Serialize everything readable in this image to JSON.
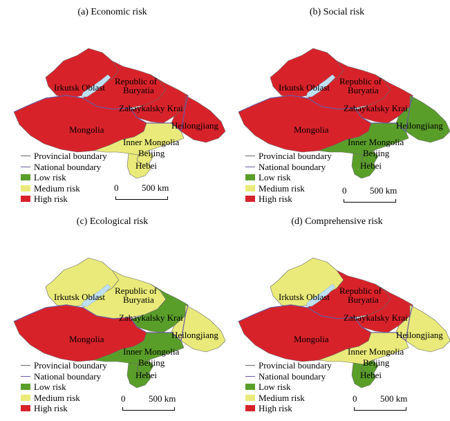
{
  "colors": {
    "low": "#5a9e2a",
    "medium": "#eaea7a",
    "high": "#d8222a",
    "lake": "#bfe0f2",
    "national_boundary": "#6a5a9e",
    "provincial_boundary": "#666666"
  },
  "labels": {
    "irkutsk": "Irkutsk Oblast",
    "buryatia_1": "Republic of",
    "buryatia_2": "Buryatia",
    "zabaykalsky": "Zabaykalsky Krai",
    "heilongjiang": "Heilongjiang",
    "mongolia": "Mongolia",
    "inner_mongolia": "Inner Mongolia",
    "beijing": "Beijing",
    "hebei": "Hebei"
  },
  "legend": {
    "provincial": "Provincial boundary",
    "national": "National boundary",
    "low": "Low risk",
    "medium": "Medium risk",
    "high": "High risk"
  },
  "scale": {
    "zero": "0",
    "dist": "500 km"
  },
  "panels": [
    {
      "title": "(a) Economic risk",
      "regions": {
        "irkutsk": "high",
        "buryatia": "high",
        "zabaykalsky": "high",
        "heilongjiang": "high",
        "mongolia": "high",
        "inner_mongolia": "medium",
        "beijing": "medium",
        "hebei": "medium"
      }
    },
    {
      "title": "(b) Social risk",
      "regions": {
        "irkutsk": "high",
        "buryatia": "high",
        "zabaykalsky": "high",
        "heilongjiang": "low",
        "mongolia": "high",
        "inner_mongolia": "low",
        "beijing": "low",
        "hebei": "low"
      }
    },
    {
      "title": "(c) Ecological risk",
      "regions": {
        "irkutsk": "medium",
        "buryatia": "medium",
        "zabaykalsky": "low",
        "heilongjiang": "medium",
        "mongolia": "high",
        "inner_mongolia": "low",
        "beijing": "low",
        "hebei": "low"
      }
    },
    {
      "title": "(d) Comprehensive risk",
      "regions": {
        "irkutsk": "medium",
        "buryatia": "high",
        "zabaykalsky": "high",
        "heilongjiang": "medium",
        "mongolia": "high",
        "inner_mongolia": "medium",
        "beijing": "low",
        "hebei": "low"
      }
    }
  ]
}
